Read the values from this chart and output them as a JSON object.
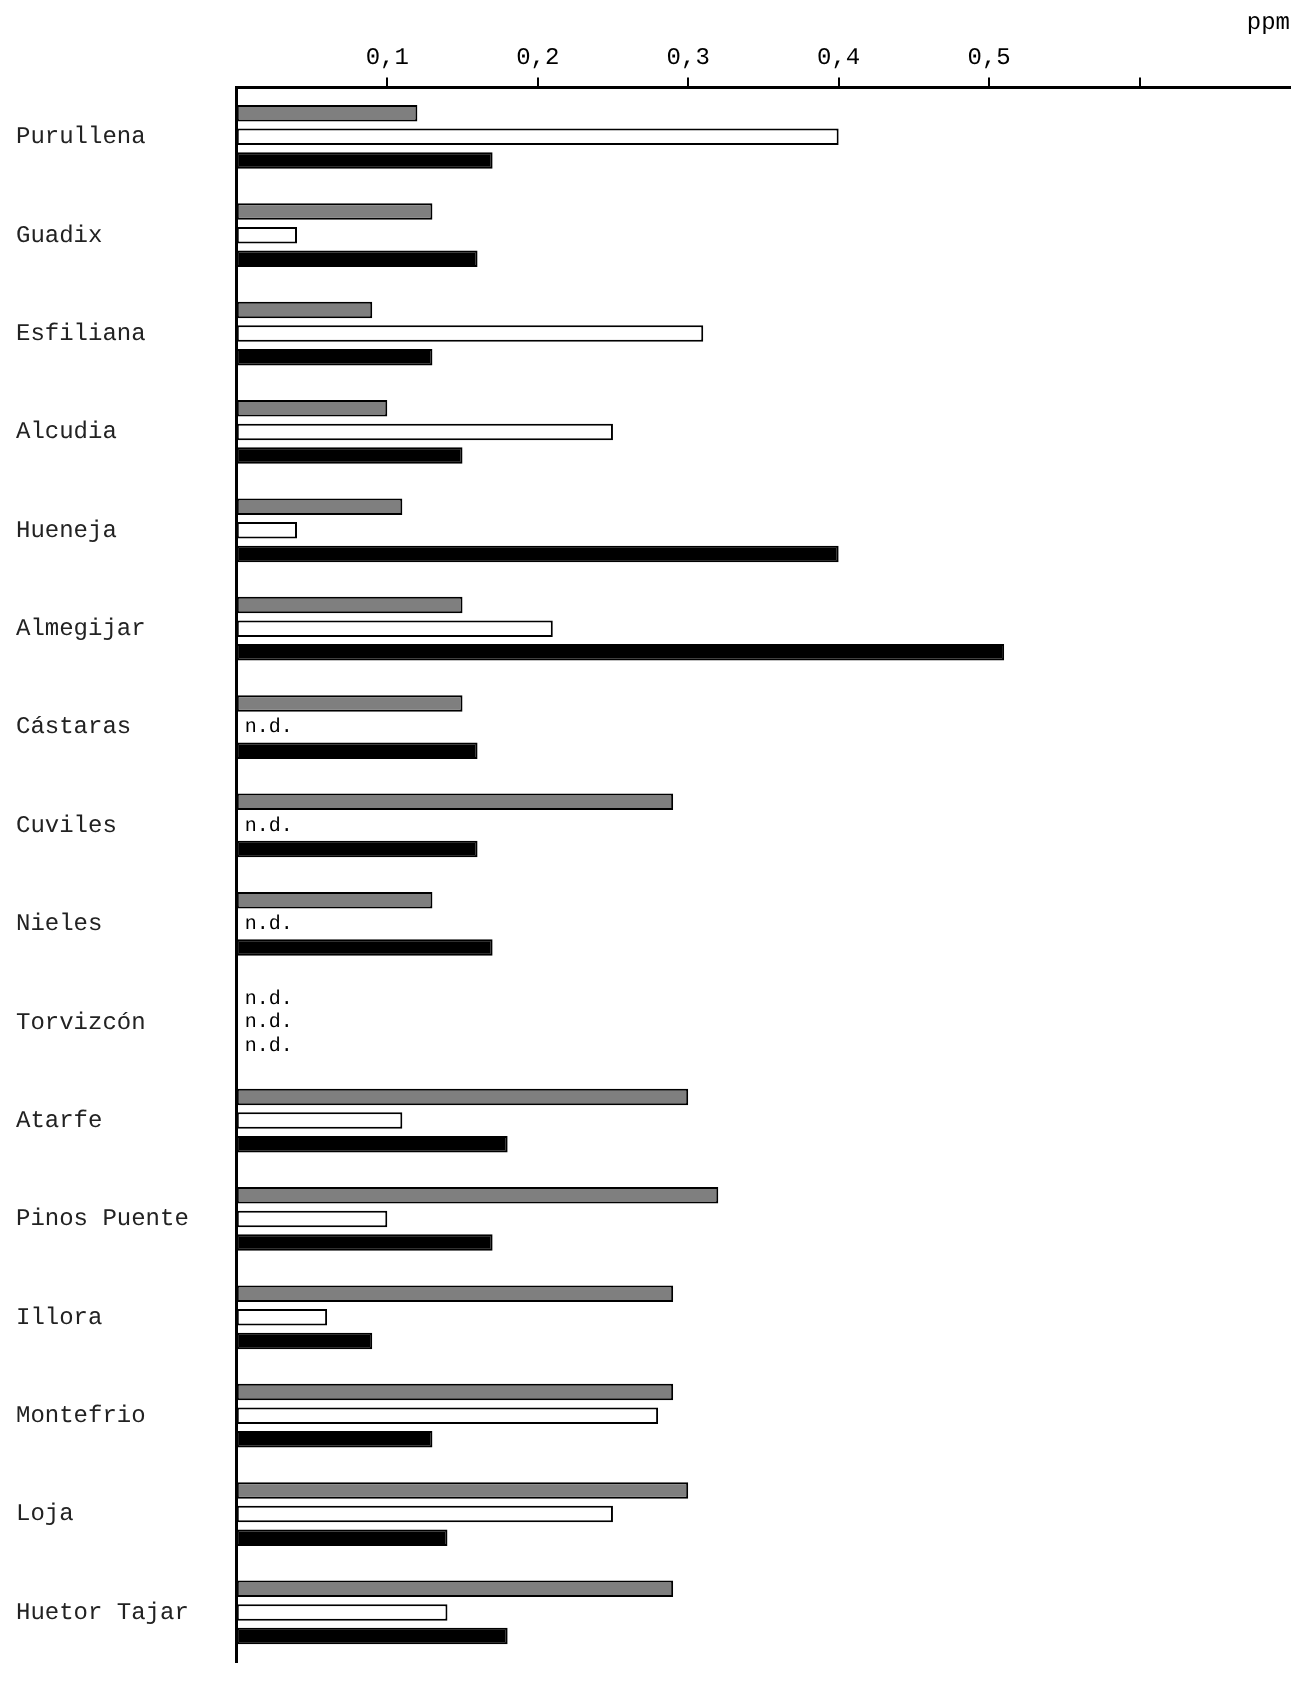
{
  "chart_data": {
    "type": "bar",
    "orientation": "horizontal",
    "xlabel": "ppm",
    "categories": [
      "Purullena",
      "Guadix",
      "Esfiliana",
      "Alcudia",
      "Hueneja",
      "Almegijar",
      "Cástaras",
      "Cuviles",
      "Nieles",
      "Torvizcón",
      "Atarfe",
      "Pinos Puente",
      "Illora",
      "Montefrio",
      "Loja",
      "Huetor Tajar"
    ],
    "series": [
      {
        "color": "#7f7f7f",
        "values": [
          0.12,
          0.13,
          0.09,
          0.1,
          0.11,
          0.15,
          0.15,
          0.29,
          0.13,
          null,
          0.3,
          0.32,
          0.29,
          0.29,
          0.3,
          0.29
        ],
        "value_labels": [
          null,
          null,
          null,
          null,
          null,
          null,
          null,
          null,
          null,
          "n.d.",
          null,
          null,
          null,
          null,
          null,
          null
        ]
      },
      {
        "color": "#ffffff",
        "values": [
          0.4,
          0.04,
          0.31,
          0.25,
          0.04,
          0.21,
          null,
          null,
          null,
          null,
          0.11,
          0.1,
          0.06,
          0.28,
          0.25,
          0.14
        ],
        "value_labels": [
          null,
          null,
          null,
          null,
          null,
          null,
          "n.d.",
          "n.d.",
          "n.d.",
          "n.d.",
          null,
          null,
          null,
          null,
          null,
          null
        ]
      },
      {
        "color": "#000000",
        "values": [
          0.17,
          0.16,
          0.13,
          0.15,
          0.4,
          0.51,
          0.16,
          0.16,
          0.17,
          null,
          0.18,
          0.17,
          0.09,
          0.13,
          0.14,
          0.18
        ],
        "value_labels": [
          null,
          null,
          null,
          null,
          null,
          null,
          null,
          null,
          null,
          "n.d.",
          null,
          null,
          null,
          null,
          null,
          null
        ]
      }
    ],
    "xlim": [
      0,
      0.7
    ],
    "xticks": [
      {
        "value": 0.1,
        "label": "0,1"
      },
      {
        "value": 0.2,
        "label": "0,2"
      },
      {
        "value": 0.3,
        "label": "0,3"
      },
      {
        "value": 0.4,
        "label": "0,4"
      },
      {
        "value": 0.5,
        "label": "0,5"
      },
      {
        "value": 0.6,
        "label": null
      }
    ],
    "grid": false,
    "legend": false
  }
}
